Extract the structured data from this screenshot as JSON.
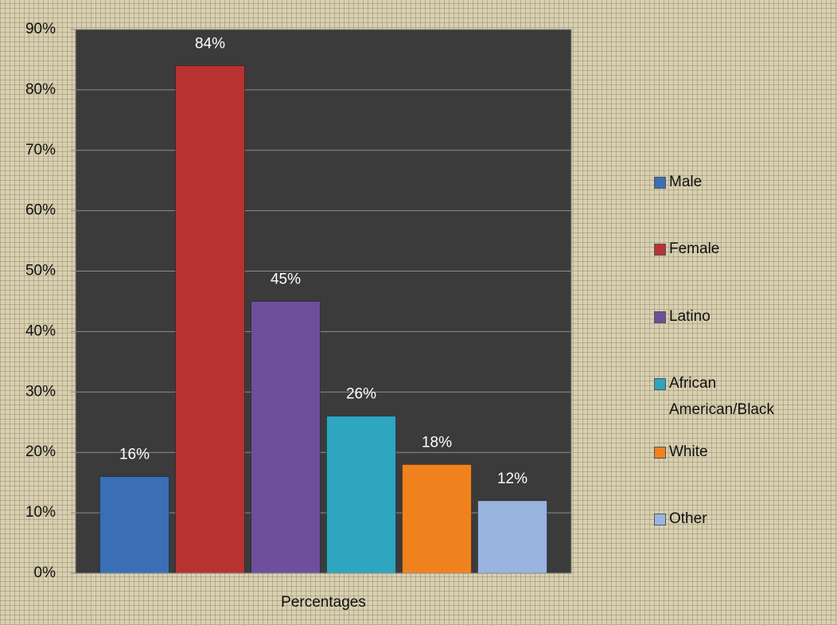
{
  "chart_data": {
    "type": "bar",
    "categories": [
      "Percentages"
    ],
    "series": [
      {
        "name": "Male",
        "color": "#3a6fb5",
        "values": [
          16
        ],
        "value_labels": [
          "16%"
        ]
      },
      {
        "name": "Female",
        "color": "#b83232",
        "values": [
          84
        ],
        "value_labels": [
          "84%"
        ]
      },
      {
        "name": "Latino",
        "color": "#6e4f9c",
        "values": [
          45
        ],
        "value_labels": [
          "45%"
        ]
      },
      {
        "name": "African American/Black",
        "color": "#2ea6c0",
        "values": [
          26
        ],
        "value_labels": [
          "26%"
        ]
      },
      {
        "name": "White",
        "color": "#f0821e",
        "values": [
          18
        ],
        "value_labels": [
          "18%"
        ]
      },
      {
        "name": "Other",
        "color": "#9ab4e0",
        "values": [
          12
        ],
        "value_labels": [
          "12%"
        ]
      }
    ],
    "ylim": [
      0,
      90
    ],
    "yticks": [
      {
        "value": 0,
        "label": "0%"
      },
      {
        "value": 10,
        "label": "10%"
      },
      {
        "value": 20,
        "label": "20%"
      },
      {
        "value": 30,
        "label": "30%"
      },
      {
        "value": 40,
        "label": "40%"
      },
      {
        "value": 50,
        "label": "50%"
      },
      {
        "value": 60,
        "label": "60%"
      },
      {
        "value": 70,
        "label": "70%"
      },
      {
        "value": 80,
        "label": "80%"
      },
      {
        "value": 90,
        "label": "90%"
      }
    ],
    "grid": true,
    "legend": "right"
  }
}
